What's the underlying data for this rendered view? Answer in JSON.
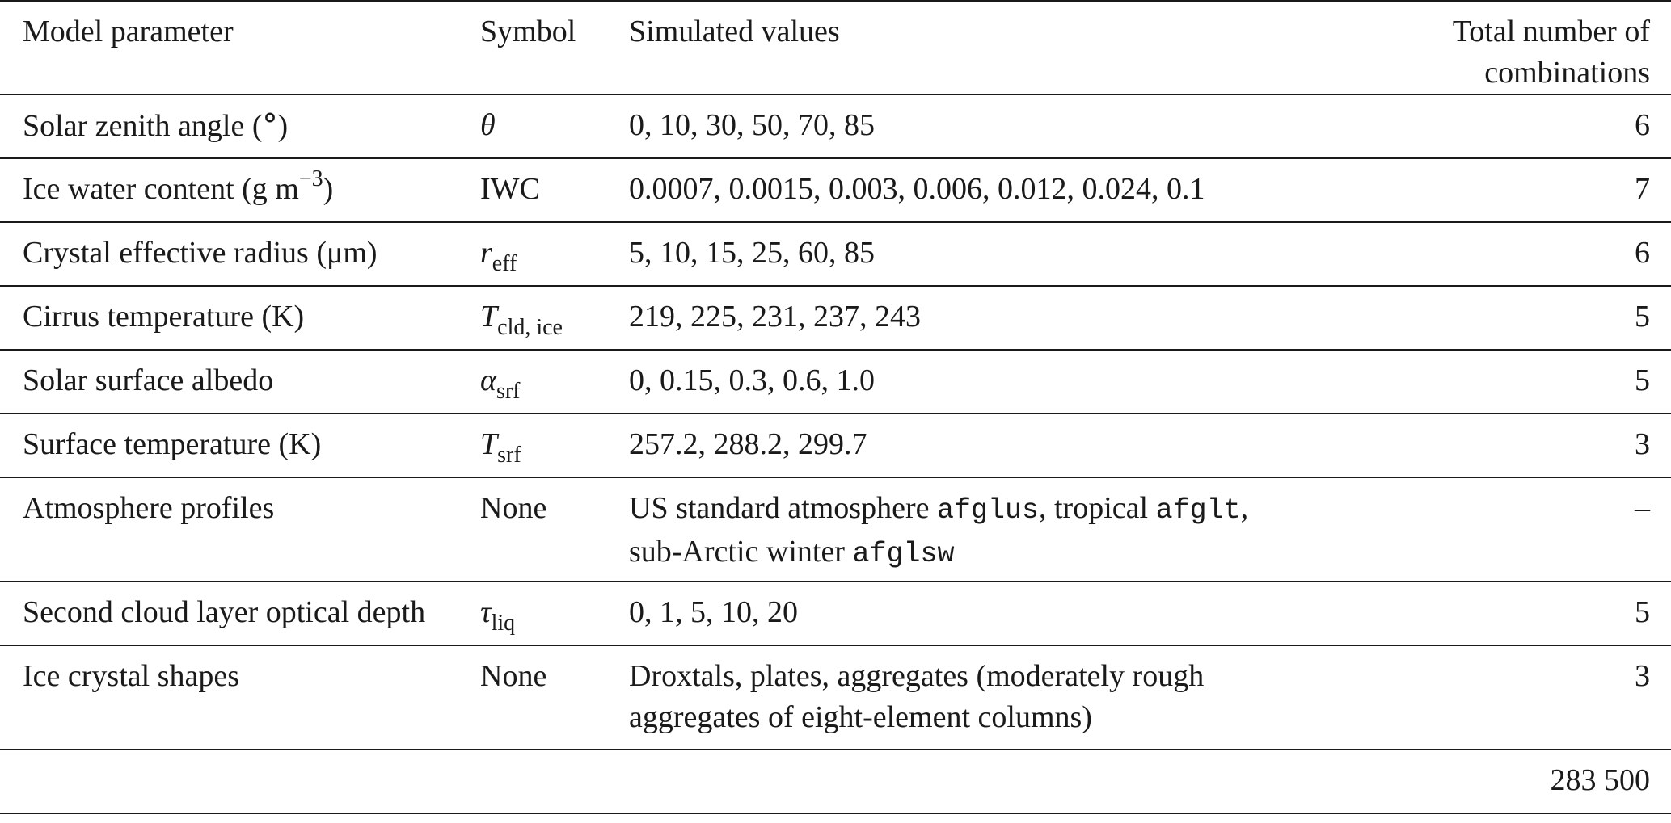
{
  "header": {
    "col1": "Model parameter",
    "col2": "Symbol",
    "col3": "Simulated values",
    "col4_line1": "Total number of",
    "col4_line2": "combinations"
  },
  "rows": [
    {
      "parameter_pre": "Solar zenith angle (",
      "parameter_deg": "°",
      "parameter_post": ")",
      "symbol": "θ",
      "values": "0, 10, 30, 50, 70, 85",
      "count": "6"
    },
    {
      "parameter_pre": "Ice water content (g m",
      "parameter_sup": "−3",
      "parameter_post": ")",
      "symbol": "IWC",
      "values": "0.0007, 0.0015, 0.003, 0.006, 0.012, 0.024, 0.1",
      "count": "7"
    },
    {
      "parameter": "Crystal effective radius (μm)",
      "symbol_base": "r",
      "symbol_sub": "eff",
      "values": "5, 10, 15, 25, 60, 85",
      "count": "6"
    },
    {
      "parameter": "Cirrus temperature (K)",
      "symbol_base": "T",
      "symbol_sub": "cld, ice",
      "values": "219, 225, 231, 237, 243",
      "count": "5"
    },
    {
      "parameter": "Solar surface albedo",
      "symbol_base": "α",
      "symbol_sub": "srf",
      "values": "0, 0.15, 0.3, 0.6, 1.0",
      "count": "5"
    },
    {
      "parameter": "Surface temperature (K)",
      "symbol_base": "T",
      "symbol_sub": "srf",
      "values": "257.2, 288.2, 299.7",
      "count": "3"
    },
    {
      "parameter": "Atmosphere profiles",
      "symbol": "None",
      "values_a": "US standard atmosphere ",
      "values_a_code": "afglus",
      "values_b": ", tropical ",
      "values_b_code": "afglt",
      "values_c": ",",
      "values_d": "sub-Arctic winter ",
      "values_d_code": "afglsw",
      "count": "–"
    },
    {
      "parameter": "Second cloud layer optical depth",
      "symbol_base": "τ",
      "symbol_sub": "liq",
      "values": "0, 1, 5, 10, 20",
      "count": "5"
    },
    {
      "parameter": "Ice crystal shapes",
      "symbol": "None",
      "values_line1": "Droxtals, plates, aggregates (moderately rough",
      "values_line2": "aggregates of eight-element columns)",
      "count": "3"
    }
  ],
  "total": "283 500"
}
